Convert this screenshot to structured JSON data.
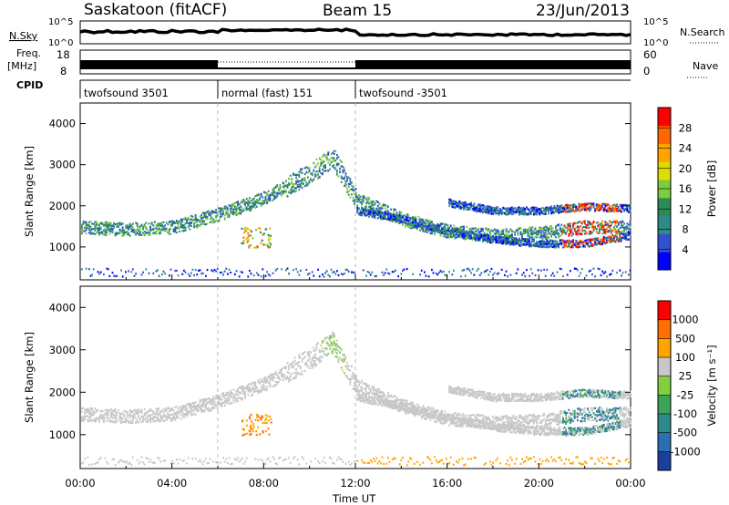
{
  "header": {
    "station": "Saskatoon (fitACF)",
    "beam": "Beam 15",
    "date": "23/Jun/2013"
  },
  "panels_top": {
    "nsky_label": "N.Sky",
    "nsky_ticks": [
      "10^5",
      "10^0"
    ],
    "nsearch_ticks": [
      "10^5",
      "10^0"
    ],
    "nsearch_label": "N.Search",
    "freq_label_top": "Freq.",
    "freq_label_unit": "[MHz]",
    "freq_ticks": [
      "18",
      "8"
    ],
    "nave_ticks": [
      "60",
      "0"
    ],
    "nave_label": "Nave",
    "cpid_label": "CPID",
    "cpid_segments": [
      {
        "label": "twofsound 3501",
        "start_h": 0,
        "end_h": 6
      },
      {
        "label": "normal (fast) 151",
        "start_h": 6,
        "end_h": 12
      },
      {
        "label": "twofsound -3501",
        "start_h": 12,
        "end_h": 24
      }
    ]
  },
  "chart_data": [
    {
      "type": "heatmap",
      "name": "power",
      "ylabel": "Slant Range [km]",
      "xlabel": "Time UT",
      "xlim": [
        0,
        24
      ],
      "ylim": [
        200,
        4500
      ],
      "yticks": [
        "1000",
        "2000",
        "3000",
        "4000"
      ],
      "colorbar_label": "Power [dB]",
      "colorbar_ticks": [
        "28",
        "24",
        "20",
        "16",
        "12",
        "8",
        "4"
      ],
      "colorbar_colors": [
        "#0000ff",
        "#3050d0",
        "#2f8a8a",
        "#2e8b57",
        "#7ccd3f",
        "#dddd00",
        "#ffa500",
        "#ff6600",
        "#ff0000"
      ],
      "echo_bands": [
        {
          "t": [
            0,
            2,
            4,
            6,
            8,
            10,
            11,
            12,
            14,
            16,
            18,
            20,
            22,
            24
          ],
          "range_km": [
            1500,
            1450,
            1500,
            1800,
            2200,
            2800,
            3200,
            2200,
            1700,
            1400,
            1300,
            1350,
            1500,
            1500
          ]
        },
        {
          "t": [
            12,
            14,
            16,
            18,
            20,
            22,
            24
          ],
          "range_km": [
            1900,
            1700,
            1400,
            1200,
            1100,
            1100,
            1300
          ]
        },
        {
          "t": [
            16,
            18,
            20,
            22,
            24
          ],
          "range_km": [
            2100,
            1900,
            1900,
            2000,
            1950
          ]
        }
      ]
    },
    {
      "type": "heatmap",
      "name": "velocity",
      "ylabel": "Slant Range [km]",
      "xlabel": "Time UT",
      "xlim": [
        0,
        24
      ],
      "ylim": [
        200,
        4500
      ],
      "yticks": [
        "1000",
        "2000",
        "3000",
        "4000"
      ],
      "colorbar_label": "Velocity [m s⁻¹]",
      "colorbar_ticks": [
        "1000",
        "500",
        "100",
        "25",
        "-25",
        "-100",
        "-500",
        "-1000"
      ],
      "colorbar_colors": [
        "#1a3fa0",
        "#2a6fb5",
        "#2f8a8a",
        "#3da35a",
        "#80d040",
        "#c8c8c8",
        "#ffa500",
        "#ff7000",
        "#ff0000"
      ],
      "xticks": [
        "00:00",
        "04:00",
        "08:00",
        "12:00",
        "16:00",
        "20:00",
        "00:00"
      ]
    }
  ]
}
